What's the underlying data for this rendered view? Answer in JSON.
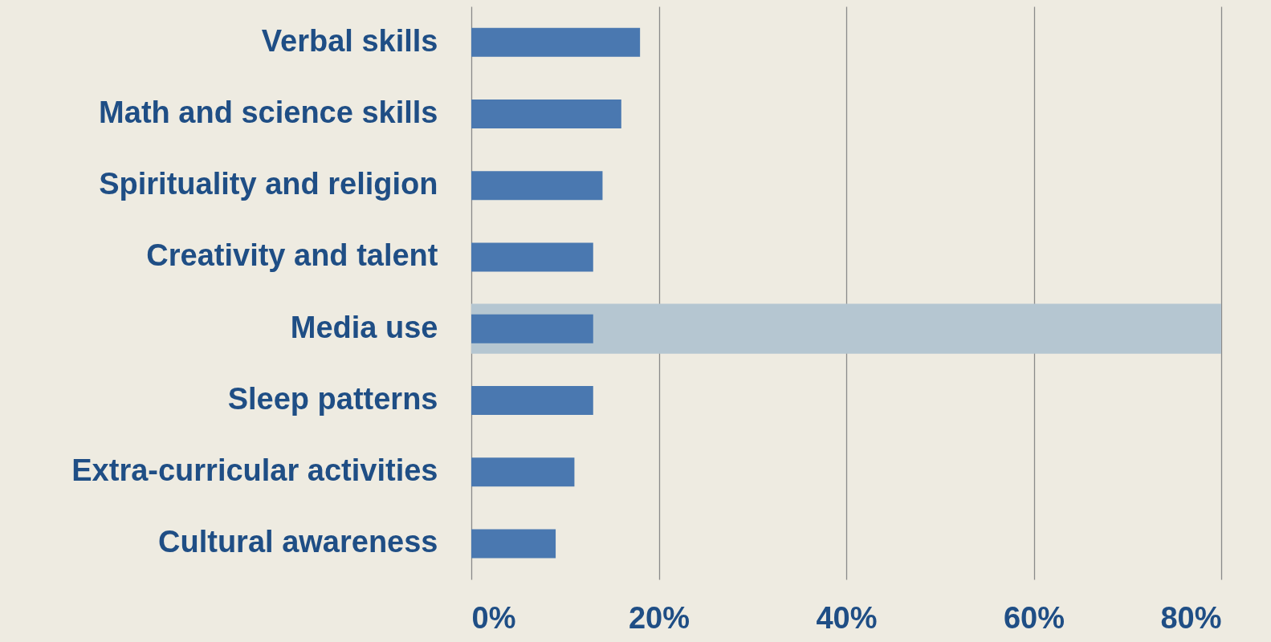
{
  "chart_data": {
    "type": "bar",
    "orientation": "horizontal",
    "categories": [
      "Verbal skills",
      "Math and science skills",
      "Spirituality and religion",
      "Creativity and talent",
      "Media use",
      "Sleep patterns",
      "Extra-curricular activities",
      "Cultural awareness"
    ],
    "values": [
      18,
      16,
      14,
      13,
      13,
      13,
      11,
      9
    ],
    "color": "#4a78b0",
    "xlim": [
      0,
      80
    ],
    "xticks": [
      {
        "value": 0,
        "label": "0%"
      },
      {
        "value": 20,
        "label": "20%"
      },
      {
        "value": 40,
        "label": "40%"
      },
      {
        "value": 60,
        "label": "60%"
      },
      {
        "value": 80,
        "label": "80%"
      }
    ],
    "bands": [
      {
        "axis": "y",
        "from": "Media use",
        "to": "Media use",
        "color": "#b5c6d1"
      }
    ],
    "grid": "x"
  }
}
